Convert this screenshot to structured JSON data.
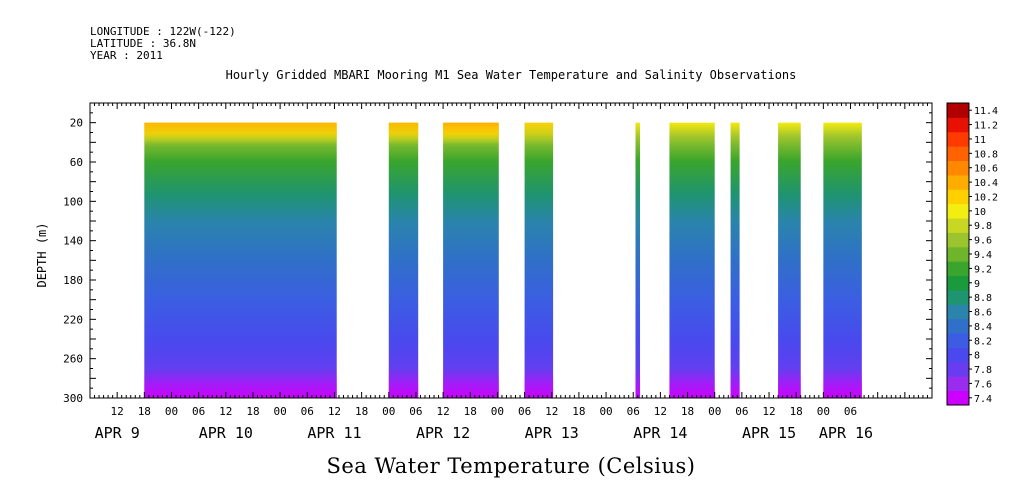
{
  "header": {
    "longitude": "LONGITUDE : 122W(-122)",
    "latitude": "LATITUDE : 36.8N",
    "year": "YEAR : 2011"
  },
  "chart_data": {
    "type": "heatmap",
    "title": "Hourly Gridded MBARI Mooring M1 Sea Water Temperature and Salinity Observations",
    "xlabel": "Sea Water Temperature (Celsius)",
    "ylabel": "DEPTH (m)",
    "x_axis": {
      "unit": "hours since APR 9 00:00",
      "range": [
        6,
        192
      ],
      "hour_ticks": [
        {
          "hour": 12,
          "label": "12"
        },
        {
          "hour": 18,
          "label": "18"
        },
        {
          "hour": 24,
          "label": "00"
        },
        {
          "hour": 30,
          "label": "06"
        },
        {
          "hour": 36,
          "label": "12"
        },
        {
          "hour": 42,
          "label": "18"
        },
        {
          "hour": 48,
          "label": "00"
        },
        {
          "hour": 54,
          "label": "06"
        },
        {
          "hour": 60,
          "label": "12"
        },
        {
          "hour": 66,
          "label": "18"
        },
        {
          "hour": 72,
          "label": "00"
        },
        {
          "hour": 78,
          "label": "06"
        },
        {
          "hour": 84,
          "label": "12"
        },
        {
          "hour": 90,
          "label": "18"
        },
        {
          "hour": 96,
          "label": "00"
        },
        {
          "hour": 102,
          "label": "06"
        },
        {
          "hour": 108,
          "label": "12"
        },
        {
          "hour": 114,
          "label": "18"
        },
        {
          "hour": 120,
          "label": "00"
        },
        {
          "hour": 126,
          "label": "06"
        },
        {
          "hour": 132,
          "label": "12"
        },
        {
          "hour": 138,
          "label": "18"
        },
        {
          "hour": 144,
          "label": "00"
        },
        {
          "hour": 150,
          "label": "06"
        },
        {
          "hour": 156,
          "label": "12"
        },
        {
          "hour": 162,
          "label": "18"
        },
        {
          "hour": 168,
          "label": "00"
        },
        {
          "hour": 174,
          "label": "06"
        }
      ],
      "day_labels": [
        {
          "hour": 12,
          "label": "APR  9"
        },
        {
          "hour": 36,
          "label": "APR 10"
        },
        {
          "hour": 60,
          "label": "APR 11"
        },
        {
          "hour": 84,
          "label": "APR 12"
        },
        {
          "hour": 108,
          "label": "APR 13"
        },
        {
          "hour": 132,
          "label": "APR 14"
        },
        {
          "hour": 156,
          "label": "APR 15"
        },
        {
          "hour": 173,
          "label": "APR 16"
        }
      ]
    },
    "y_axis": {
      "range": [
        300,
        0
      ],
      "ticks": [
        20,
        60,
        100,
        140,
        180,
        220,
        260,
        300
      ],
      "data_top": 20
    },
    "colorbar": {
      "levels": [
        7.4,
        7.6,
        7.8,
        8,
        8.2,
        8.4,
        8.6,
        8.8,
        9,
        9.2,
        9.4,
        9.6,
        9.8,
        10,
        10.2,
        10.4,
        10.6,
        10.8,
        11,
        11.2,
        11.4
      ],
      "labels": [
        "7.4",
        "7.6",
        "7.8",
        "8",
        "8.2",
        "8.4",
        "8.6",
        "8.8",
        "9",
        "9.2",
        "9.4",
        "9.6",
        "9.8",
        "10",
        "10.2",
        "10.4",
        "10.6",
        "10.8",
        "11",
        "11.2",
        "11.4"
      ],
      "colors": [
        "#cc00ff",
        "#9a2cf0",
        "#6a3cf0",
        "#4a48ee",
        "#3c5ce4",
        "#3070c8",
        "#2a84ac",
        "#1f9470",
        "#1a9a3c",
        "#3aa52c",
        "#6fb52c",
        "#9cc42e",
        "#c8d624",
        "#f2ee10",
        "#ffd000",
        "#ffac00",
        "#ff8800",
        "#ff6200",
        "#ff3a00",
        "#e81000",
        "#b00000"
      ]
    },
    "data_segments": [
      {
        "start": 18,
        "end": 60.5,
        "surface_warm": 0.85
      },
      {
        "start": 72,
        "end": 78.5,
        "surface_warm": 0.8
      },
      {
        "start": 84,
        "end": 96.3,
        "surface_warm": 0.95
      },
      {
        "start": 102,
        "end": 108.3,
        "surface_warm": 0.45
      },
      {
        "start": 126.5,
        "end": 127.5,
        "surface_warm": 0.1
      },
      {
        "start": 134,
        "end": 144,
        "surface_warm": 0.1
      },
      {
        "start": 147.5,
        "end": 149.5,
        "surface_warm": 0.1
      },
      {
        "start": 158,
        "end": 163,
        "surface_warm": 0.05
      },
      {
        "start": 168,
        "end": 176.5,
        "surface_warm": 0.05
      }
    ]
  }
}
